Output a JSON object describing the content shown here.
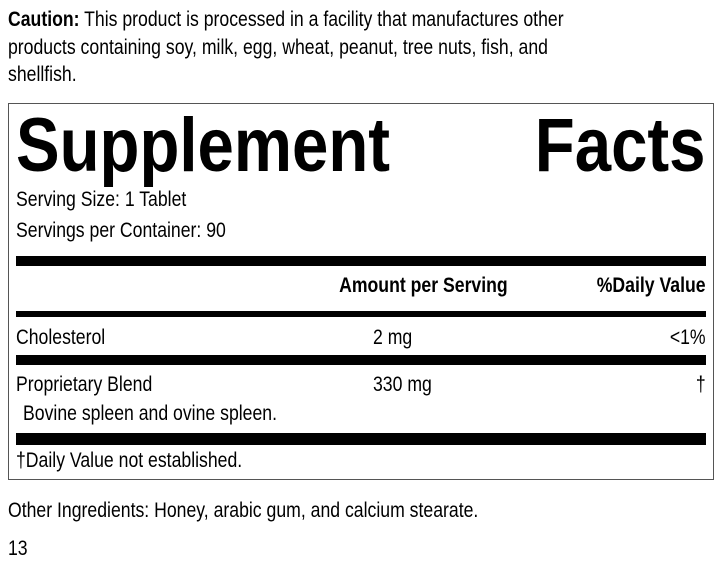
{
  "caution": {
    "label": "Caution:",
    "line1": " This product is processed in a facility that manufactures other",
    "line2": "products containing soy, milk, egg, wheat, peanut, tree nuts, fish, and",
    "line3": "shellfish."
  },
  "facts": {
    "title_word1": "Supplement",
    "title_word2": "Facts",
    "serving_size": "Serving Size: 1 Tablet",
    "servings_per_container": "Servings per Container: 90",
    "header": {
      "amount": "Amount per Serving",
      "daily_value": "%Daily Value"
    },
    "rows": [
      {
        "name": "Cholesterol",
        "amount": "2 mg",
        "dv": "<1%"
      },
      {
        "name": "Proprietary Blend",
        "amount": "330 mg",
        "dv": "†",
        "detail": "Bovine spleen and ovine spleen."
      }
    ],
    "footnote": "†Daily Value not established."
  },
  "other_ingredients": "Other Ingredients: Honey, arabic gum, and calcium stearate.",
  "page_number": "13"
}
